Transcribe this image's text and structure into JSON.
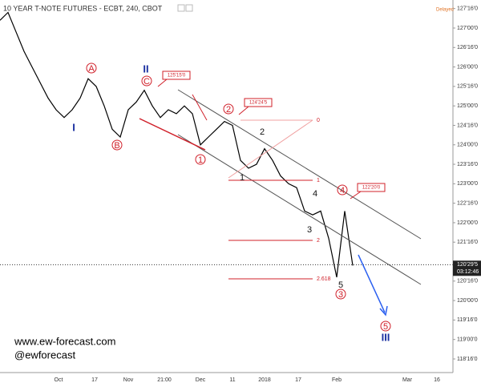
{
  "chart_data": {
    "type": "line",
    "title": "10 YEAR T-NOTE FUTURES - ECBT, 240, CBOT",
    "status": "Delayed",
    "series": [
      {
        "name": "10 YEAR T-NOTE FUTURES",
        "color": "#000000",
        "values": [
          127.2,
          127.4,
          126.9,
          126.4,
          126.0,
          125.6,
          125.2,
          124.9,
          124.7,
          124.9,
          125.2,
          125.7,
          125.5,
          125.0,
          124.4,
          124.2,
          124.9,
          125.1,
          125.4,
          125.0,
          124.7,
          124.9,
          124.8,
          125.0,
          124.8,
          124.0,
          124.2,
          124.4,
          124.6,
          124.5,
          123.6,
          123.4,
          123.5,
          123.9,
          123.6,
          123.2,
          123.0,
          122.9,
          122.3,
          122.2,
          122.3,
          121.6,
          120.6,
          122.3,
          120.9
        ]
      }
    ],
    "ylim": [
      118.15,
      127.72
    ],
    "yticks": [
      {
        "value": 127.5,
        "label": "127'16'0"
      },
      {
        "value": 127,
        "label": "127'00'0"
      },
      {
        "value": 126.5,
        "label": "126'16'0"
      },
      {
        "value": 126,
        "label": "126'00'0"
      },
      {
        "value": 125.5,
        "label": "125'16'0"
      },
      {
        "value": 125,
        "label": "125'00'0"
      },
      {
        "value": 124.5,
        "label": "124'16'0"
      },
      {
        "value": 124,
        "label": "124'00'0"
      },
      {
        "value": 123.5,
        "label": "123'16'0"
      },
      {
        "value": 123,
        "label": "123'00'0"
      },
      {
        "value": 122.5,
        "label": "122'16'0"
      },
      {
        "value": 122,
        "label": "122'00'0"
      },
      {
        "value": 121.5,
        "label": "121'16'0"
      },
      {
        "value": 120.5,
        "label": "120'16'0"
      },
      {
        "value": 120,
        "label": "120'00'0"
      },
      {
        "value": 119.5,
        "label": "119'16'0"
      },
      {
        "value": 119,
        "label": "119'00'0"
      },
      {
        "value": 118.5,
        "label": "118'16'0"
      }
    ],
    "xticks": [
      "Oct",
      "17",
      "Nov",
      "21:00",
      "Dec",
      "11",
      "2018",
      "17",
      "Feb",
      "Mar",
      "16"
    ],
    "current_price": {
      "value": 120.921875,
      "label": "120'29'5"
    },
    "countdown": "03:12:46",
    "waves": [
      "A",
      "B",
      "C",
      "1",
      "2",
      "4",
      "3",
      "5",
      "2",
      "1",
      "4",
      "3",
      "5",
      "I",
      "II",
      "III"
    ],
    "fib_labels": [
      "0",
      "1",
      "2",
      "2.618"
    ],
    "price_boxes": [
      "125'15'0",
      "124'24'5",
      "122'20'0"
    ],
    "footer": [
      "www.ew-forecast.com",
      "@ewforecast"
    ]
  }
}
